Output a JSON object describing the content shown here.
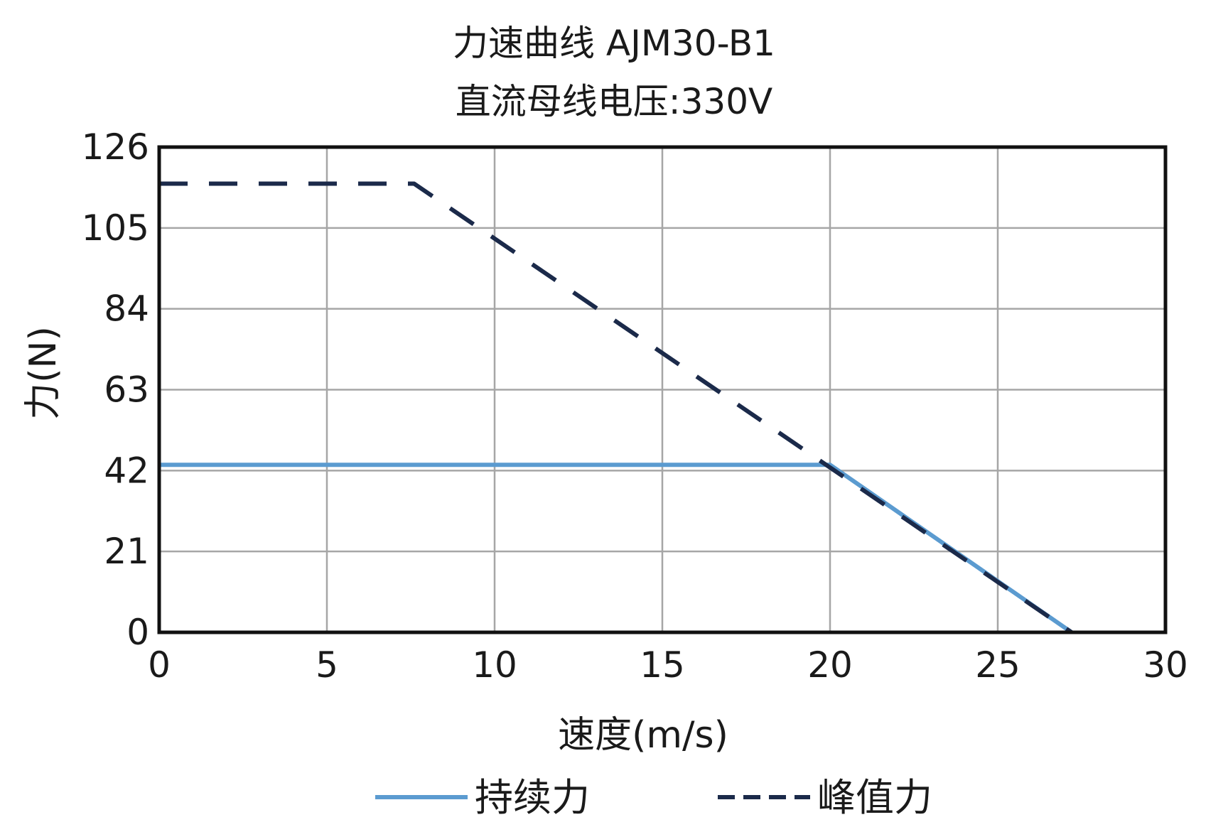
{
  "chart_data": {
    "type": "line",
    "title": "力速曲线 AJM30-B1",
    "subtitle": "直流母线电压:330V",
    "xlabel": "速度(m/s)",
    "ylabel": "力(N)",
    "xlim": [
      0,
      30
    ],
    "ylim": [
      0,
      126
    ],
    "xticks": [
      0,
      5,
      10,
      15,
      20,
      25,
      30
    ],
    "yticks": [
      0,
      21,
      42,
      63,
      84,
      105,
      126
    ],
    "grid": true,
    "legend_position": "bottom",
    "series": [
      {
        "name": "持续力",
        "style": "solid",
        "color": "#5b9bd0",
        "points": [
          [
            0,
            43.5
          ],
          [
            20,
            43.5
          ],
          [
            27.2,
            0
          ]
        ]
      },
      {
        "name": "峰值力",
        "style": "dashed",
        "color": "#1b2a4a",
        "points": [
          [
            0,
            116.5
          ],
          [
            7.6,
            116.5
          ],
          [
            27.2,
            0
          ]
        ]
      }
    ]
  }
}
